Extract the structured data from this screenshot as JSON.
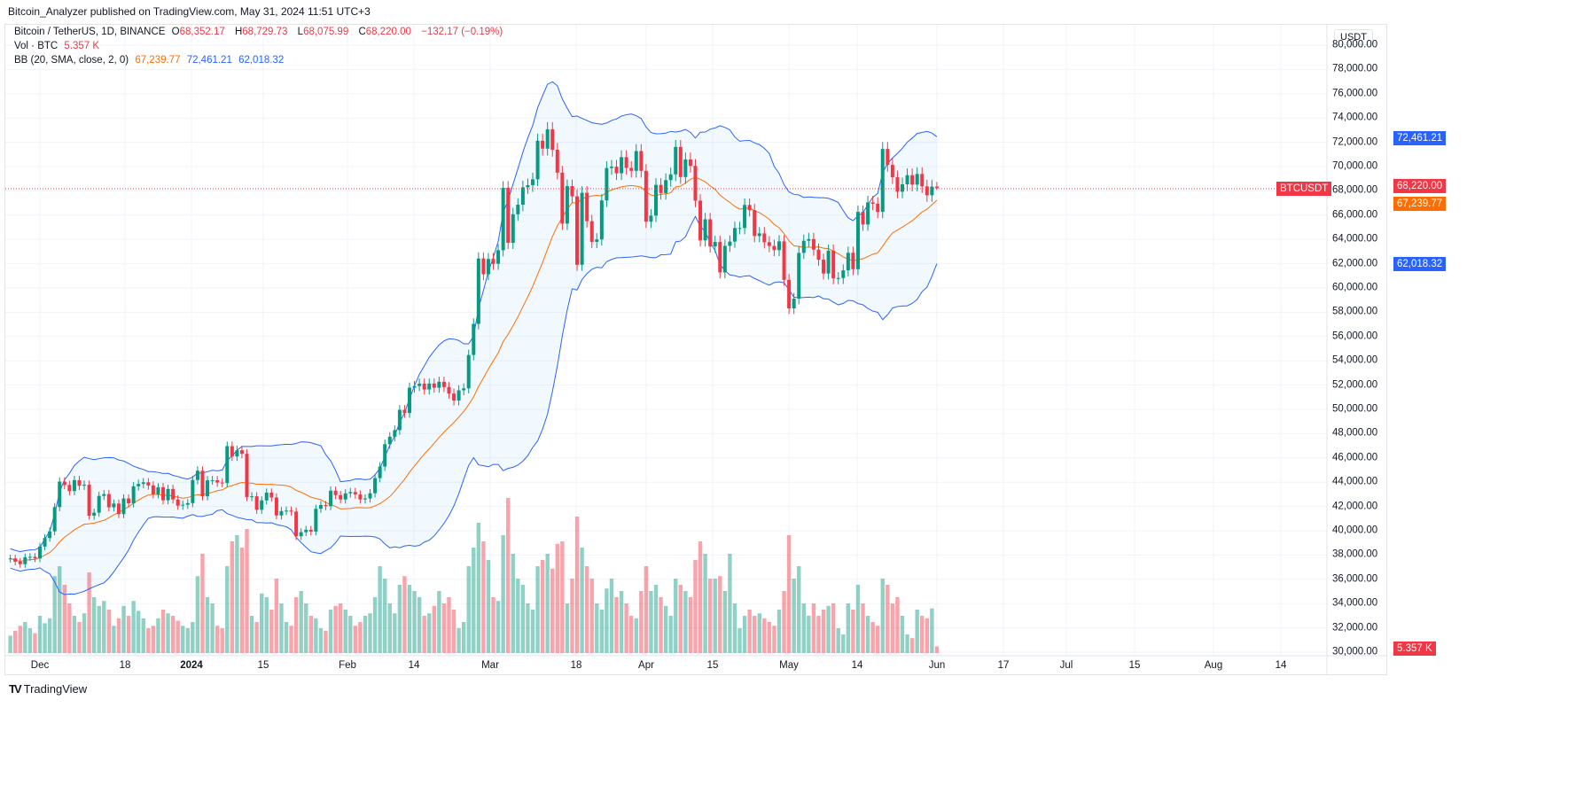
{
  "publish_line": "Bitcoin_Analyzer published on TradingView.com, May 31, 2024 11:51 UTC+3",
  "legend": {
    "symbol": "Bitcoin / TetherUS, 1D, BINANCE",
    "o_label": "O",
    "o": "68,352.17",
    "h_label": "H",
    "h": "68,729.73",
    "l_label": "L",
    "l": "68,075.99",
    "c_label": "C",
    "c": "68,220.00",
    "change": "−132.17 (−0.19%)",
    "vol_label": "Vol · BTC",
    "vol": "5.357 K",
    "bb_label": "BB (20, SMA, close, 2, 0)",
    "bb_basis": "67,239.77",
    "bb_upper": "72,461.21",
    "bb_lower": "62,018.32"
  },
  "price_axis": {
    "currency": "USDT",
    "ticks": [
      "80,000.00",
      "78,000.00",
      "76,000.00",
      "74,000.00",
      "72,000.00",
      "70,000.00",
      "68,000.00",
      "66,000.00",
      "64,000.00",
      "62,000.00",
      "60,000.00",
      "58,000.00",
      "56,000.00",
      "54,000.00",
      "52,000.00",
      "50,000.00",
      "48,000.00",
      "46,000.00",
      "44,000.00",
      "42,000.00",
      "40,000.00",
      "38,000.00",
      "36,000.00",
      "34,000.00",
      "32,000.00",
      "30,000.00"
    ],
    "symbol_tag": "BTCUSDT",
    "last_price": "68,220.00",
    "bb_upper_tag": "72,461.21",
    "bb_basis_tag": "67,239.77",
    "bb_lower_tag": "62,018.32",
    "volume_tag": "5.357 K"
  },
  "time_axis": {
    "ticks": [
      "Dec",
      "18",
      "2024",
      "15",
      "Feb",
      "14",
      "Mar",
      "18",
      "Apr",
      "15",
      "May",
      "14",
      "Jun",
      "17",
      "Jul",
      "15",
      "Aug",
      "14"
    ]
  },
  "footer": {
    "brand": "TradingView"
  },
  "colors": {
    "up": "#089981",
    "down": "#f23645",
    "bb_band": "#2962ff",
    "bb_basis": "#ff6d00",
    "last_price": "#f23645"
  },
  "chart_data": {
    "type": "candlestick",
    "symbol": "BTCUSDT",
    "interval": "1D",
    "start_date": "2023-11-25",
    "close": [
      37720,
      37450,
      37250,
      37820,
      37850,
      37720,
      38700,
      39400,
      39950,
      41950,
      44050,
      43770,
      43270,
      44170,
      43710,
      43790,
      41240,
      41490,
      42870,
      43020,
      41930,
      42240,
      41370,
      42660,
      42260,
      43660,
      43860,
      43990,
      43730,
      43010,
      43580,
      42510,
      43440,
      42580,
      42070,
      42140,
      42280,
      44180,
      44950,
      42840,
      44150,
      44160,
      43970,
      43930,
      46970,
      46120,
      46630,
      46340,
      42780,
      42840,
      41730,
      42500,
      43140,
      42740,
      41260,
      41620,
      41660,
      41580,
      39550,
      39880,
      40080,
      39930,
      41810,
      42120,
      42030,
      43300,
      42940,
      42580,
      43080,
      43190,
      42990,
      42580,
      42660,
      43090,
      44340,
      45290,
      47130,
      47750,
      48290,
      49960,
      49700,
      51790,
      51920,
      52120,
      51640,
      52130,
      51780,
      52270,
      51840,
      51300,
      50730,
      51570,
      51730,
      54480,
      57040,
      62430,
      61130,
      62390,
      61990,
      63110,
      68250,
      63720,
      66070,
      66860,
      68290,
      68470,
      68950,
      72130,
      71480,
      73070,
      71390,
      69500,
      65300,
      68390,
      67550,
      61910,
      67840,
      65500,
      63800,
      64000,
      67210,
      69880,
      69990,
      69450,
      70780,
      69890,
      69650,
      71280,
      69650,
      65460,
      65960,
      68490,
      67820,
      68890,
      69360,
      71620,
      69140,
      70590,
      70060,
      67190,
      63920,
      65660,
      63420,
      63790,
      61280,
      63470,
      63820,
      64940,
      64940,
      66840,
      66410,
      64280,
      64500,
      63770,
      63460,
      63120,
      63840,
      60670,
      58320,
      59120,
      62890,
      63890,
      64030,
      63160,
      62330,
      61190,
      63070,
      60790,
      60820,
      61450,
      62900,
      61550,
      66270,
      65230,
      67050,
      66940,
      66270,
      71450,
      70140,
      69120,
      67930,
      68540,
      69290,
      68510,
      69390,
      68370,
      67640,
      68350,
      68220
    ],
    "volume_k": [
      14,
      18,
      22,
      25,
      20,
      16,
      30,
      24,
      28,
      62,
      70,
      55,
      40,
      30,
      25,
      32,
      65,
      45,
      38,
      42,
      35,
      22,
      28,
      38,
      30,
      42,
      34,
      28,
      20,
      22,
      28,
      35,
      32,
      30,
      26,
      22,
      20,
      25,
      62,
      80,
      45,
      40,
      22,
      20,
      70,
      90,
      95,
      85,
      100,
      30,
      25,
      48,
      45,
      35,
      60,
      40,
      25,
      22,
      45,
      50,
      40,
      30,
      28,
      20,
      18,
      35,
      38,
      40,
      35,
      30,
      22,
      25,
      30,
      32,
      45,
      70,
      60,
      40,
      32,
      55,
      62,
      55,
      50,
      45,
      30,
      32,
      38,
      50,
      40,
      45,
      35,
      20,
      25,
      70,
      85,
      105,
      90,
      75,
      45,
      42,
      95,
      125,
      80,
      60,
      55,
      40,
      35,
      70,
      75,
      80,
      68,
      88,
      90,
      40,
      60,
      110,
      85,
      70,
      60,
      40,
      35,
      52,
      60,
      45,
      50,
      40,
      30,
      28,
      50,
      70,
      50,
      55,
      45,
      38,
      30,
      60,
      55,
      50,
      45,
      75,
      90,
      80,
      60,
      60,
      62,
      50,
      80,
      40,
      20,
      30,
      35,
      30,
      32,
      28,
      25,
      22,
      35,
      50,
      95,
      60,
      70,
      40,
      30,
      40,
      30,
      35,
      38,
      40,
      20,
      15,
      40,
      35,
      55,
      40,
      30,
      25,
      22,
      60,
      55,
      40,
      45,
      30,
      15,
      12,
      35,
      30,
      28,
      36,
      5.357
    ],
    "last_bar": {
      "open": 68352.17,
      "high": 68729.73,
      "low": 68075.99,
      "close": 68220.0,
      "volume_k": 5.357
    },
    "indicators": {
      "bollinger": {
        "length": 20,
        "ma": "SMA",
        "source": "close",
        "mult": 2,
        "offset": 0,
        "basis": 67239.77,
        "upper": 72461.21,
        "lower": 62018.32
      }
    },
    "ylim": [
      30000,
      80000
    ],
    "x_range": [
      "2023-11-25",
      "2024-08-20"
    ],
    "grid": true
  }
}
